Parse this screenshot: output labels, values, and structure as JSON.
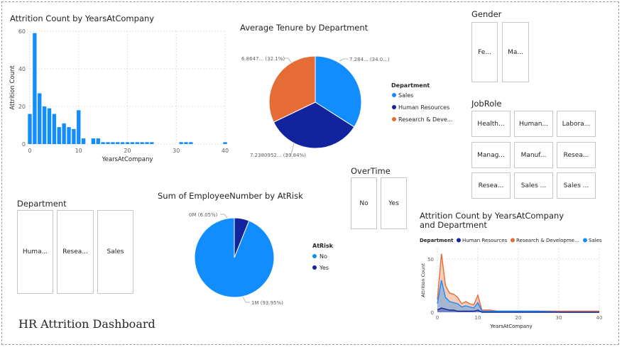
{
  "dashboard_title": "HR Attrition Dashboard",
  "colors": {
    "blue": "#118DFF",
    "dark_blue": "#12239E",
    "orange": "#E66C37",
    "tile_border": "#c8c6c4",
    "axis_text": "#605E5C"
  },
  "gender_slicer": {
    "title": "Gender",
    "items": [
      "Fe...",
      "Ma..."
    ]
  },
  "jobrole_slicer": {
    "title": "JobRole",
    "items": [
      "Health...",
      "Human...",
      "Labora...",
      "Manag...",
      "Manuf...",
      "Resea...",
      "Resea...",
      "Sales ...",
      "Sales ..."
    ]
  },
  "overtime_slicer": {
    "title": "OverTime",
    "items": [
      "No",
      "Yes"
    ]
  },
  "department_slicer": {
    "title": "Department",
    "items": [
      "Huma...",
      "Resea...",
      "Sales"
    ]
  },
  "chart_data": [
    {
      "id": "attrition-by-years",
      "type": "bar",
      "title": "Attrition Count by YearsAtCompany",
      "xlabel": "YearsAtCompany",
      "ylabel": "Attrition Count",
      "xlim": [
        0,
        40
      ],
      "ylim": [
        0,
        60
      ],
      "xticks": [
        0,
        10,
        20,
        30,
        40
      ],
      "yticks": [
        0,
        20,
        40,
        60
      ],
      "x": [
        0,
        1,
        2,
        3,
        4,
        5,
        6,
        7,
        8,
        9,
        10,
        11,
        13,
        14,
        15,
        16,
        17,
        18,
        19,
        20,
        21,
        22,
        23,
        24,
        25,
        31,
        32,
        33,
        40
      ],
      "values": [
        16,
        59,
        27,
        20,
        19,
        16,
        9,
        11,
        9,
        8,
        18,
        3,
        3,
        3,
        1,
        1,
        1,
        1,
        1,
        1,
        1,
        1,
        1,
        1,
        1,
        1,
        1,
        1,
        1
      ],
      "grid": true
    },
    {
      "id": "avg-tenure-by-department",
      "type": "pie",
      "title": "Average Tenure by Department",
      "legend_title": "Department",
      "legend_position": "right",
      "slices": [
        {
          "name": "Sales",
          "value": 34.0,
          "label": "7.284... (34.0...)"
        },
        {
          "name": "Human Resources",
          "value": 33.84,
          "label": "7.2380952... (33.84%)"
        },
        {
          "name": "Research & Deve...",
          "value": 32.1,
          "label": "6.8647... (32.1%)"
        }
      ]
    },
    {
      "id": "employee-by-atrisk",
      "type": "pie",
      "title": "Sum of EmployeeNumber by AtRisk",
      "legend_title": "AtRisk",
      "legend_position": "right",
      "slices": [
        {
          "name": "No",
          "value": 93.95,
          "label": "1M (93.95%)"
        },
        {
          "name": "Yes",
          "value": 6.05,
          "label": "0M (6.05%)"
        }
      ]
    },
    {
      "id": "attrition-by-years-and-department",
      "type": "area",
      "title": "Attrition Count by YearsAtCompany and Department",
      "legend_title": "Department",
      "legend_position": "top",
      "xlabel": "YearsAtCompany",
      "ylabel": "Attrition Count",
      "xlim": [
        0,
        40
      ],
      "ylim": [
        0,
        60
      ],
      "xticks": [
        0,
        10,
        20,
        30,
        40
      ],
      "yticks": [
        0,
        50
      ],
      "x": [
        0,
        1,
        2,
        3,
        4,
        5,
        6,
        7,
        8,
        9,
        10,
        11,
        13,
        15,
        20,
        25,
        31,
        33,
        40
      ],
      "series": [
        {
          "name": "Human Resources",
          "values": [
            2,
            4,
            3,
            2,
            2,
            1,
            1,
            1,
            1,
            1,
            2,
            0,
            0,
            0,
            0,
            0,
            0,
            0,
            0
          ]
        },
        {
          "name": "Research & Developme...",
          "values": [
            12,
            55,
            25,
            18,
            17,
            14,
            8,
            10,
            8,
            7,
            16,
            2,
            2,
            1,
            1,
            1,
            1,
            1,
            1
          ]
        },
        {
          "name": "Sales",
          "values": [
            8,
            30,
            14,
            10,
            9,
            8,
            5,
            6,
            5,
            4,
            9,
            1,
            1,
            1,
            1,
            1,
            0,
            0,
            0
          ]
        }
      ]
    }
  ]
}
